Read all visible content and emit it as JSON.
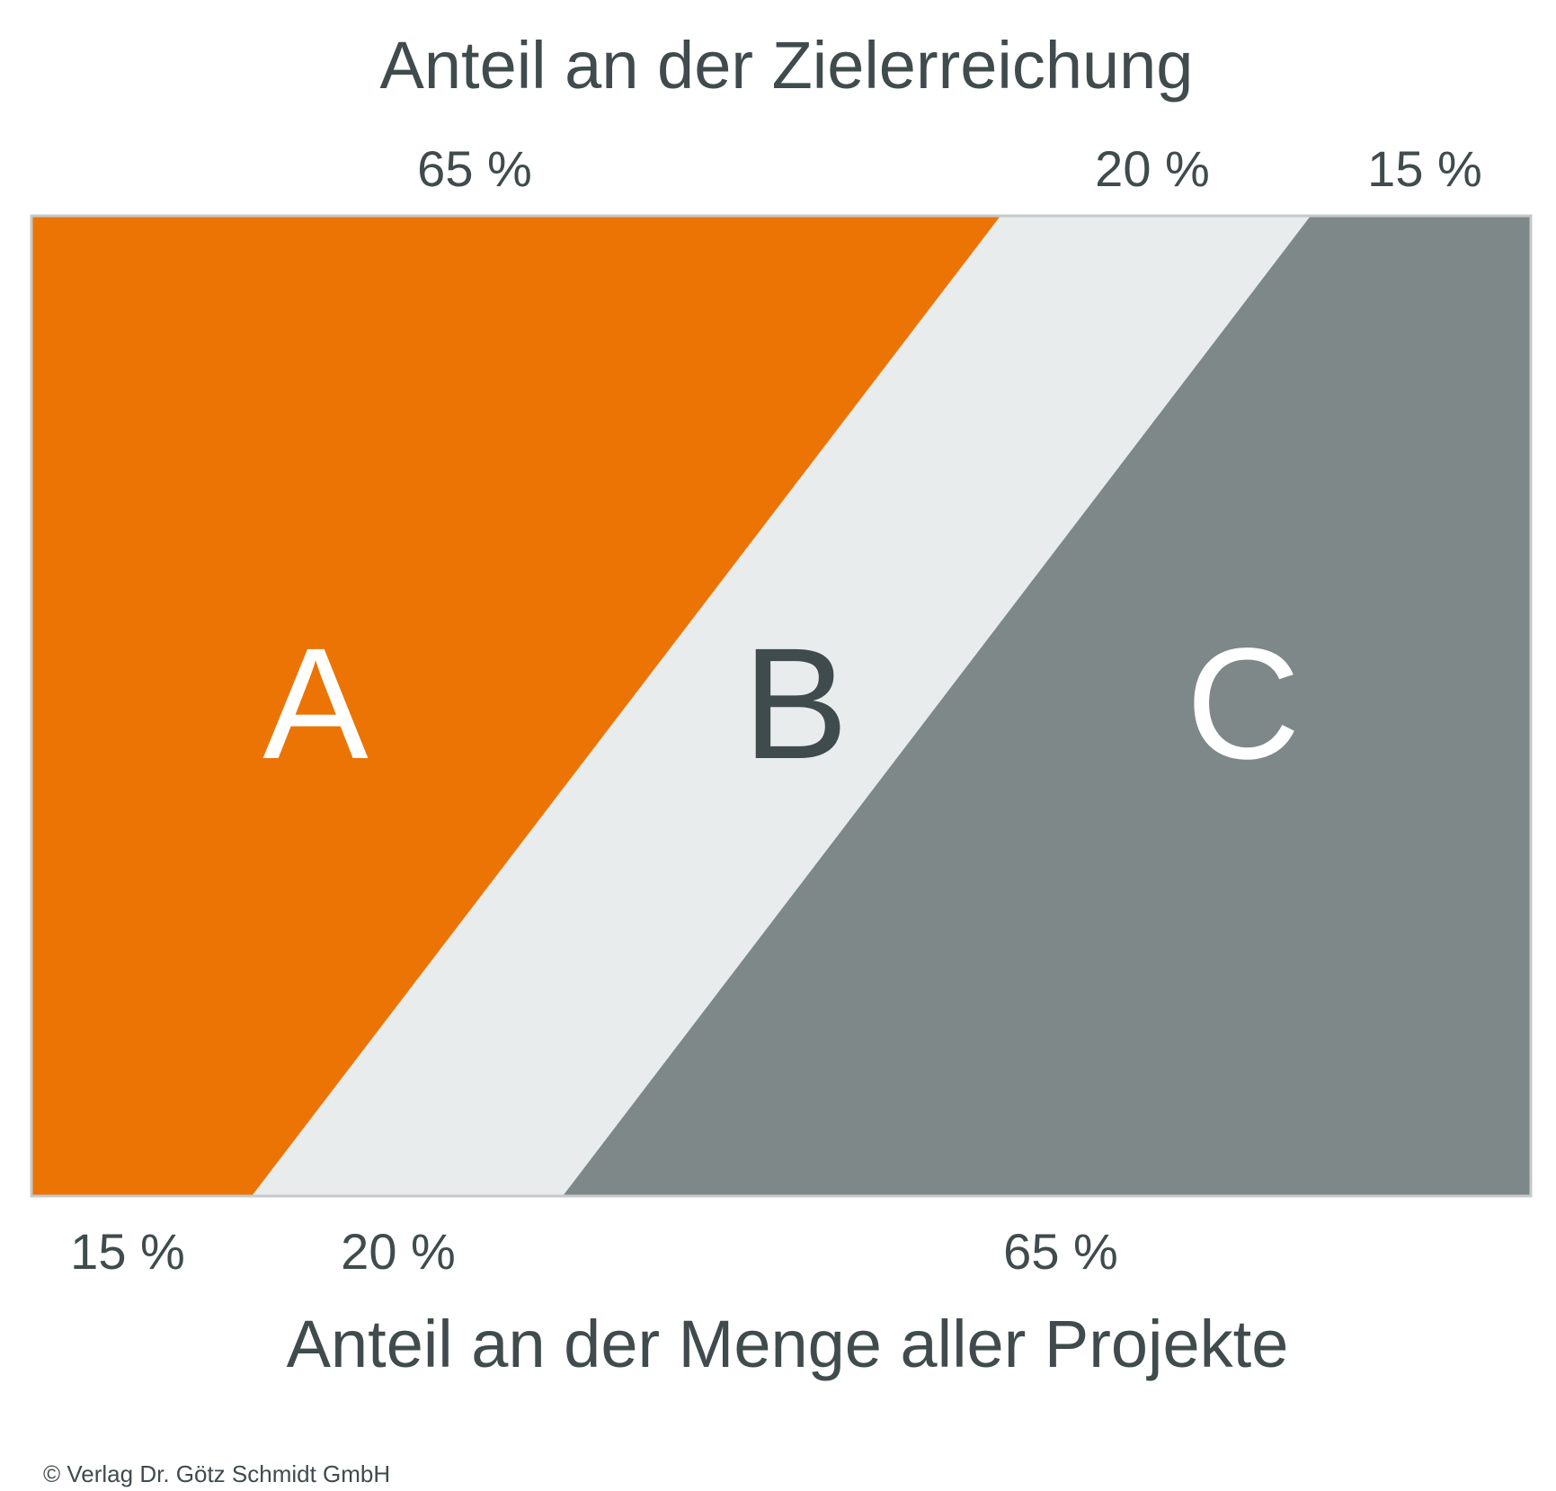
{
  "diagram": {
    "title_top": "Anteil an der Zielerreichung",
    "title_bottom": "Anteil an der Menge aller Projekte",
    "copyright": "© Verlag Dr. Götz Schmidt GmbH",
    "colors": {
      "a": "#ec7405",
      "b": "#e8ecec",
      "c": "#7e8889",
      "border": "#c5c9c9",
      "text": "#3f4b4d",
      "letter_light": "#ffffff",
      "letter_dark": "#3f4b4d"
    },
    "categories": [
      {
        "letter": "A",
        "goal_share": "65 %",
        "quantity_share": "15 %"
      },
      {
        "letter": "B",
        "goal_share": "20 %",
        "quantity_share": "20 %"
      },
      {
        "letter": "C",
        "goal_share": "15 %",
        "quantity_share": "65 %"
      }
    ]
  }
}
